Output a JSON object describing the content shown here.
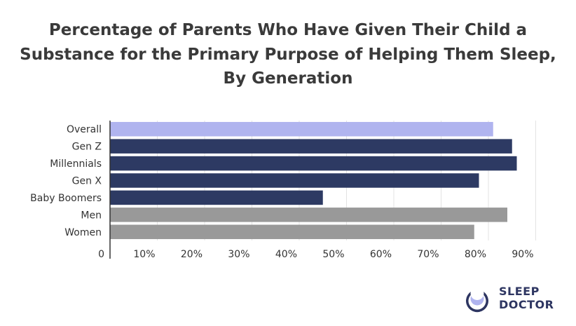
{
  "chart_data": {
    "type": "bar",
    "orientation": "horizontal",
    "title": "Percentage of Parents Who Have Given Their Child a Substance for the Primary Purpose of Helping Them Sleep, By Generation",
    "title_lines": [
      "Percentage of Parents Who Have Given Their Child a",
      "Substance for the Primary Purpose of Helping Them Sleep,",
      "By Generation"
    ],
    "categories": [
      "Overall",
      "Gen Z",
      "Millennials",
      "Gen X",
      "Baby Boomers",
      "Men",
      "Women"
    ],
    "values": [
      81,
      85,
      86,
      78,
      45,
      84,
      77
    ],
    "bar_colors": [
      "#b0b4ef",
      "#2d3a63",
      "#2d3a63",
      "#2d3a63",
      "#2d3a63",
      "#999999",
      "#999999"
    ],
    "x_ticks": [
      "0",
      "10%",
      "20%",
      "30%",
      "40%",
      "50%",
      "60%",
      "70%",
      "80%",
      "90%"
    ],
    "xlim": [
      0,
      92
    ],
    "xlabel": "",
    "ylabel": "",
    "grid": "vertical"
  },
  "logo": {
    "line1": "SLEEP",
    "line2": "DOCTOR",
    "color": "#2d3561"
  }
}
